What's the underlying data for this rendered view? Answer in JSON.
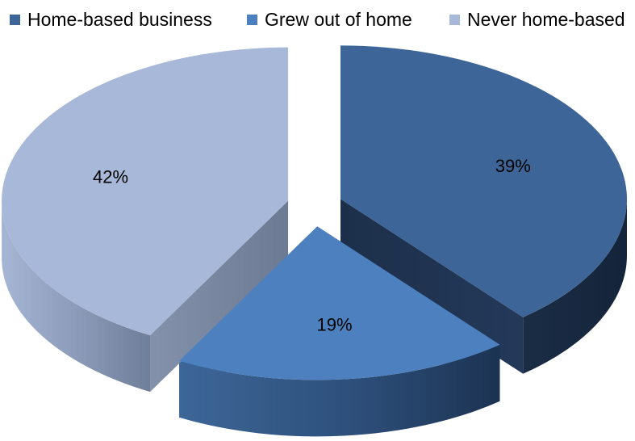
{
  "chart_data": {
    "type": "pie",
    "title": "",
    "legend_position": "top",
    "series": [
      {
        "name": "",
        "slices": [
          {
            "label": "Home-based business",
            "value": 39,
            "data_label": "39%",
            "color": "#3d6598"
          },
          {
            "label": "Grew out of home",
            "value": 19,
            "data_label": "19%",
            "color": "#4c80bf"
          },
          {
            "label": "Never home-based",
            "value": 42,
            "data_label": "42%",
            "color": "#a8b8d8"
          }
        ]
      }
    ],
    "exploded": true,
    "three_d": true
  }
}
